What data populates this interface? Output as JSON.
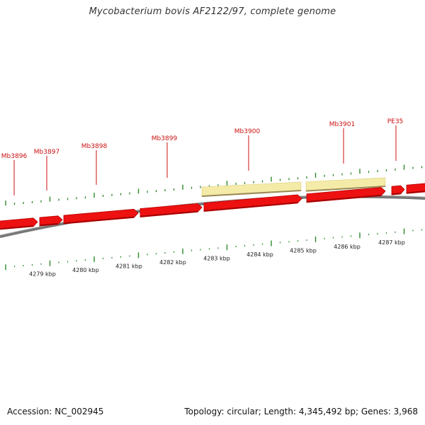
{
  "title": "Mycobacterium bovis AF2122/97, complete genome",
  "footer": {
    "accession": "Accession: NC_002945",
    "summary": "Topology: circular; Length: 4,345,492 bp; Genes: 3,968"
  },
  "colors": {
    "gene": "#ee1111",
    "gene_label": "#cc1111",
    "feature": "#f5eba8",
    "tick": "#2d8a2d",
    "backbone": "#888888"
  },
  "chart_data": {
    "type": "genome-map",
    "gene_labels": [
      "Mb3896",
      "Mb3897",
      "Mb3898",
      "Mb3899",
      "Mb3900",
      "Mb3901",
      "PE35"
    ],
    "scale_labels": [
      "4279 kbp",
      "4280 kbp",
      "4281 kbp",
      "4282 kbp",
      "4283 kbp",
      "4284 kbp",
      "4285 kbp",
      "4286 kbp",
      "4287 kbp"
    ]
  }
}
